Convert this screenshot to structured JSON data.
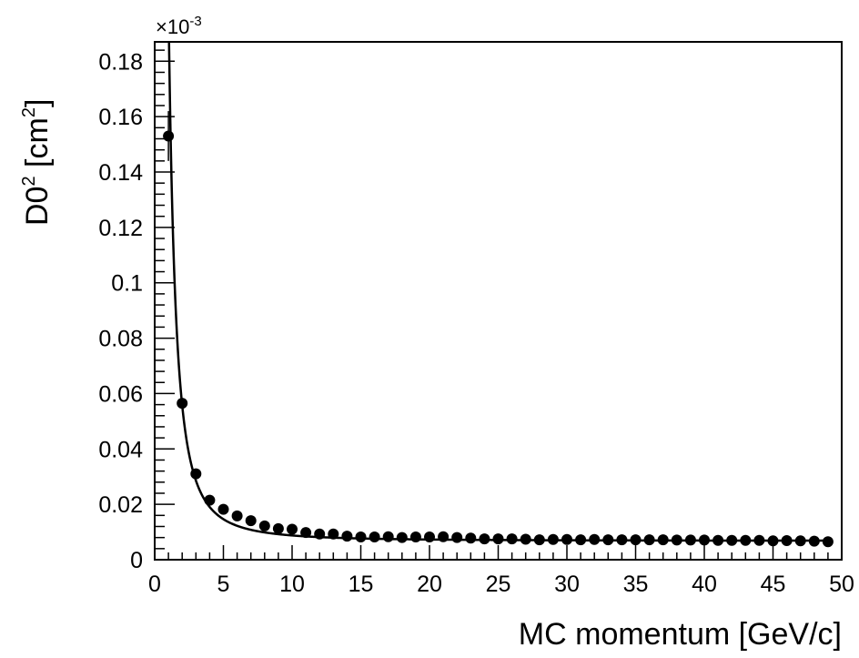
{
  "chart_data": {
    "type": "scatter",
    "ylabel": "D0",
    "ylabel_sup1": "2",
    "ylabel_unit": "[cm",
    "ylabel_sup2": "2",
    "ylabel_close": "]",
    "xlabel": "MC momentum [GeV/c]",
    "exponent_label": "×10",
    "exponent_power": "-3",
    "xlim": [
      0,
      50
    ],
    "ylim": [
      0,
      0.187
    ],
    "x_ticks": [
      0,
      5,
      10,
      15,
      20,
      25,
      30,
      35,
      40,
      45,
      50
    ],
    "x_tick_labels": [
      "0",
      "5",
      "10",
      "15",
      "20",
      "25",
      "30",
      "35",
      "40",
      "45",
      "50"
    ],
    "y_ticks": [
      0,
      0.02,
      0.04,
      0.06,
      0.08,
      0.1,
      0.12,
      0.14,
      0.16,
      0.18
    ],
    "y_tick_labels": [
      "0",
      "0.02",
      "0.04",
      "0.06",
      "0.08",
      "0.1",
      "0.12",
      "0.14",
      "0.16",
      "0.18"
    ],
    "grid": false,
    "series": [
      {
        "marker": "filled-circle",
        "color": "#000000",
        "x": [
          1,
          2,
          3,
          4,
          5,
          6,
          7,
          8,
          9,
          10,
          11,
          12,
          13,
          14,
          15,
          16,
          17,
          18,
          19,
          20,
          21,
          22,
          23,
          24,
          25,
          26,
          27,
          28,
          29,
          30,
          31,
          32,
          33,
          34,
          35,
          36,
          37,
          38,
          39,
          40,
          41,
          42,
          43,
          44,
          45,
          46,
          47,
          48,
          49
        ],
        "y": [
          0.153,
          0.0565,
          0.031,
          0.0215,
          0.0182,
          0.0158,
          0.0141,
          0.0122,
          0.0112,
          0.011,
          0.0098,
          0.0093,
          0.0093,
          0.0085,
          0.0082,
          0.0082,
          0.0083,
          0.008,
          0.0082,
          0.0082,
          0.0083,
          0.008,
          0.0078,
          0.0075,
          0.0075,
          0.0075,
          0.0074,
          0.0072,
          0.0073,
          0.0073,
          0.0072,
          0.0073,
          0.0072,
          0.0072,
          0.0072,
          0.0072,
          0.0072,
          0.0071,
          0.0071,
          0.0071,
          0.007,
          0.007,
          0.007,
          0.007,
          0.0068,
          0.0069,
          0.0068,
          0.0067,
          0.0065
        ],
        "y_err_first": 0.009
      }
    ],
    "fit_curve": {
      "color": "#000000",
      "model": "a + b / x^2",
      "a": 0.0068,
      "b": 0.196,
      "x_range": [
        1.0,
        49.2
      ]
    }
  }
}
